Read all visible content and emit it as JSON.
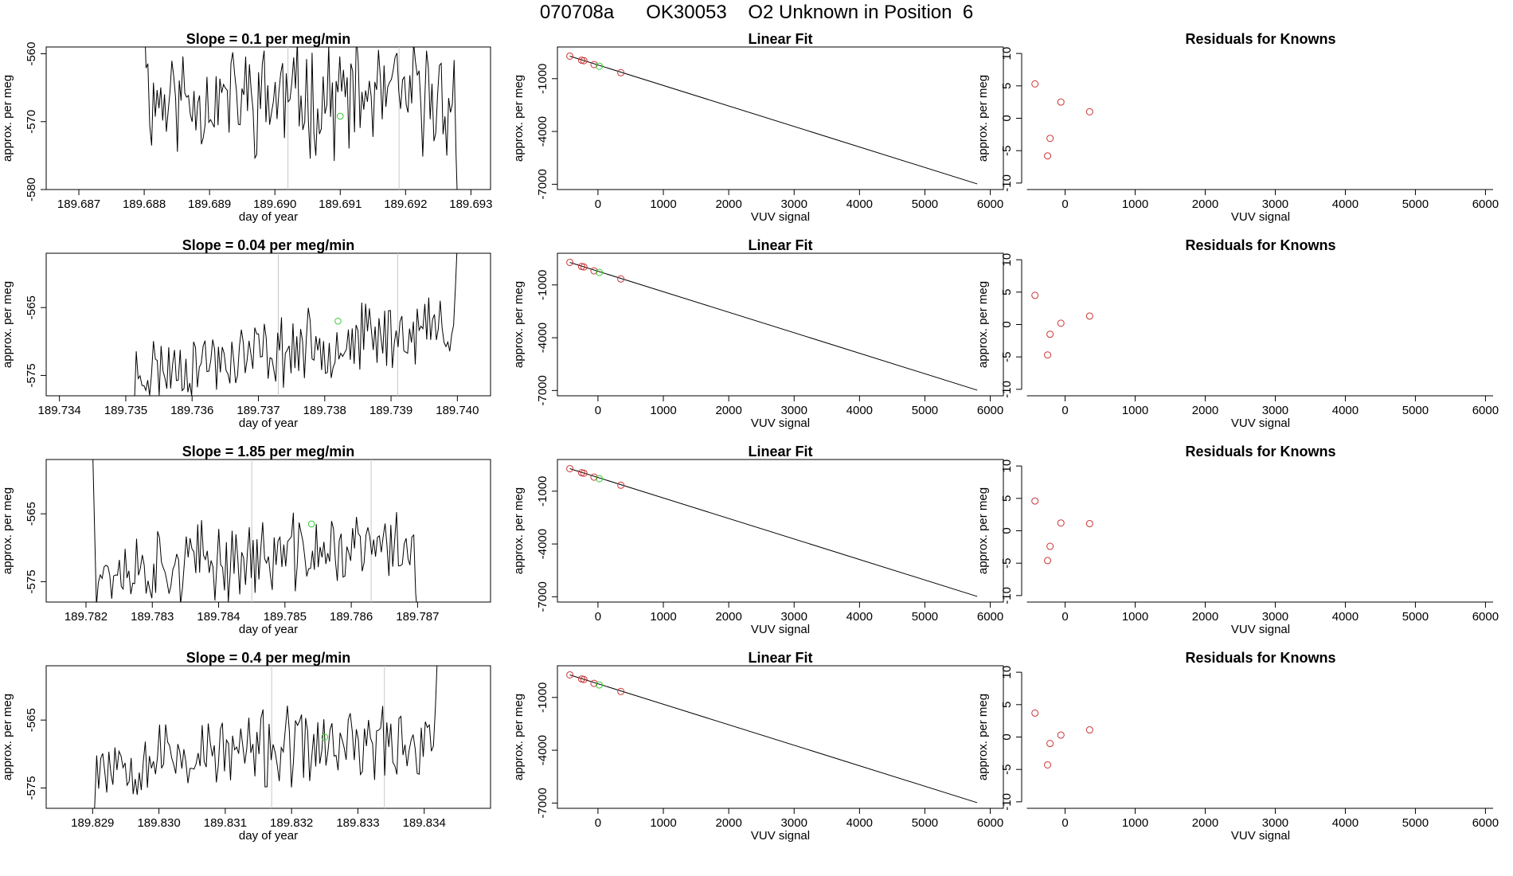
{
  "figure": {
    "title": "070708a      OK30053    O2 Unknown in Position  6"
  },
  "colors": {
    "axis": "#000000",
    "trace": "#000000",
    "fit_line": "#000000",
    "vline": "#c8c8c8",
    "red_point": "#cc3333",
    "green_point": "#33cc33"
  },
  "chart_data": [
    {
      "type": "line",
      "title": "Slope =  0.1  per meg/min",
      "xlabel": "day of year",
      "ylabel": "approx. per meg",
      "xlim": [
        189.6865,
        189.6933
      ],
      "ylim": [
        -580,
        -559
      ],
      "xticks": [
        189.687,
        189.688,
        189.689,
        189.69,
        189.691,
        189.692,
        189.693
      ],
      "xtick_labels": [
        "189.687",
        "189.688",
        "189.689",
        "189.690",
        "189.691",
        "189.692",
        "189.693"
      ],
      "yticks": [
        -560,
        -570,
        -580
      ],
      "ytick_labels": [
        "-560",
        "-570",
        "-580"
      ],
      "vlines": [
        189.6902,
        189.6919
      ],
      "highlight": {
        "x": 189.691,
        "y": -569.2
      },
      "series": {
        "start": 189.688,
        "end": 189.6928,
        "center": -566.5,
        "trend": 0.0,
        "amp": 6.5,
        "seed": 11,
        "lead_in": -553,
        "tail": -584
      }
    },
    {
      "type": "line",
      "title": "Slope =  0.04  per meg/min",
      "xlabel": "day of year",
      "ylabel": "approx. per meg",
      "xlim": [
        189.7338,
        189.7405
      ],
      "ylim": [
        -578,
        -557
      ],
      "xticks": [
        189.734,
        189.735,
        189.736,
        189.737,
        189.738,
        189.739,
        189.74
      ],
      "xtick_labels": [
        "189.734",
        "189.735",
        "189.736",
        "189.737",
        "189.738",
        "189.739",
        "189.740"
      ],
      "yticks": [
        -565,
        -575
      ],
      "ytick_labels": [
        "-565",
        "-575"
      ],
      "vlines": [
        189.7373,
        189.7391
      ],
      "highlight": {
        "x": 189.7382,
        "y": -567.0
      },
      "series": {
        "start": 189.7351,
        "end": 189.74,
        "center": -571.0,
        "trend": 7.0,
        "amp": 4.0,
        "seed": 23,
        "lead_in": -585,
        "tail": -555
      }
    },
    {
      "type": "line",
      "title": "Slope =  1.85  per meg/min",
      "xlabel": "day of year",
      "ylabel": "approx. per meg",
      "xlim": [
        189.7814,
        189.7881
      ],
      "ylim": [
        -578,
        -557
      ],
      "xticks": [
        189.782,
        189.783,
        189.784,
        189.785,
        189.786,
        189.787
      ],
      "xtick_labels": [
        "189.782",
        "189.783",
        "189.784",
        "189.785",
        "189.786",
        "189.787"
      ],
      "yticks": [
        -565,
        -575
      ],
      "ytick_labels": [
        "-565",
        "-575"
      ],
      "vlines": [
        189.7845,
        189.7863
      ],
      "highlight": {
        "x": 189.7854,
        "y": -566.5
      },
      "series": {
        "start": 189.7821,
        "end": 189.787,
        "center": -571.5,
        "trend": 4.0,
        "amp": 4.5,
        "seed": 37,
        "lead_in": -555,
        "tail": -580
      }
    },
    {
      "type": "line",
      "title": "Slope =  0.4  per meg/min",
      "xlabel": "day of year",
      "ylabel": "approx. per meg",
      "xlim": [
        189.8283,
        189.835
      ],
      "ylim": [
        -578,
        -557
      ],
      "xticks": [
        189.829,
        189.83,
        189.831,
        189.832,
        189.833,
        189.834
      ],
      "xtick_labels": [
        "189.829",
        "189.830",
        "189.831",
        "189.832",
        "189.833",
        "189.834"
      ],
      "yticks": [
        -565,
        -575
      ],
      "ytick_labels": [
        "-565",
        "-575"
      ],
      "vlines": [
        189.8317,
        189.8334
      ],
      "highlight": {
        "x": 189.8325,
        "y": -567.5
      },
      "series": {
        "start": 189.829,
        "end": 189.8342,
        "center": -569.5,
        "trend": 3.0,
        "amp": 4.5,
        "seed": 53,
        "lead_in": -582,
        "tail": -555
      }
    },
    {
      "type": "scatter",
      "title": "Linear Fit",
      "xlabel": "VUV signal",
      "ylabel": "approx. per meg",
      "xlim": [
        -620,
        6200
      ],
      "ylim": [
        -7300,
        800
      ],
      "xticks": [
        0,
        1000,
        2000,
        3000,
        4000,
        5000,
        6000
      ],
      "xtick_labels": [
        "0",
        "1000",
        "2000",
        "3000",
        "4000",
        "5000",
        "6000"
      ],
      "yticks": [
        -1000,
        -4000,
        -7000
      ],
      "ytick_labels": [
        "-1000",
        "-4000",
        "-7000"
      ],
      "fit_line": {
        "x": [
          -430,
          5800
        ],
        "y": [
          280,
          -6980
        ]
      },
      "points_red": [
        [
          -430,
          280
        ],
        [
          -250,
          50
        ],
        [
          -215,
          20
        ],
        [
          -60,
          -200
        ],
        [
          350,
          -660
        ]
      ],
      "points_green": [
        [
          20,
          -290
        ]
      ]
    },
    {
      "type": "scatter",
      "title": "Linear Fit",
      "xlabel": "VUV signal",
      "ylabel": "approx. per meg",
      "xlim": [
        -620,
        6200
      ],
      "ylim": [
        -7300,
        800
      ],
      "xticks": [
        0,
        1000,
        2000,
        3000,
        4000,
        5000,
        6000
      ],
      "xtick_labels": [
        "0",
        "1000",
        "2000",
        "3000",
        "4000",
        "5000",
        "6000"
      ],
      "yticks": [
        -1000,
        -4000,
        -7000
      ],
      "ytick_labels": [
        "-1000",
        "-4000",
        "-7000"
      ],
      "fit_line": {
        "x": [
          -430,
          5800
        ],
        "y": [
          280,
          -6980
        ]
      },
      "points_red": [
        [
          -430,
          280
        ],
        [
          -250,
          50
        ],
        [
          -215,
          20
        ],
        [
          -60,
          -200
        ],
        [
          350,
          -660
        ]
      ],
      "points_green": [
        [
          20,
          -290
        ]
      ]
    },
    {
      "type": "scatter",
      "title": "Linear Fit",
      "xlabel": "VUV signal",
      "ylabel": "approx. per meg",
      "xlim": [
        -620,
        6200
      ],
      "ylim": [
        -7300,
        800
      ],
      "xticks": [
        0,
        1000,
        2000,
        3000,
        4000,
        5000,
        6000
      ],
      "xtick_labels": [
        "0",
        "1000",
        "2000",
        "3000",
        "4000",
        "5000",
        "6000"
      ],
      "yticks": [
        -1000,
        -4000,
        -7000
      ],
      "ytick_labels": [
        "-1000",
        "-4000",
        "-7000"
      ],
      "fit_line": {
        "x": [
          -430,
          5800
        ],
        "y": [
          280,
          -6980
        ]
      },
      "points_red": [
        [
          -430,
          280
        ],
        [
          -250,
          50
        ],
        [
          -215,
          20
        ],
        [
          -60,
          -200
        ],
        [
          350,
          -660
        ]
      ],
      "points_green": [
        [
          20,
          -290
        ]
      ]
    },
    {
      "type": "scatter",
      "title": "Linear Fit",
      "xlabel": "VUV signal",
      "ylabel": "approx. per meg",
      "xlim": [
        -620,
        6200
      ],
      "ylim": [
        -7300,
        800
      ],
      "xticks": [
        0,
        1000,
        2000,
        3000,
        4000,
        5000,
        6000
      ],
      "xtick_labels": [
        "0",
        "1000",
        "2000",
        "3000",
        "4000",
        "5000",
        "6000"
      ],
      "yticks": [
        -1000,
        -4000,
        -7000
      ],
      "ytick_labels": [
        "-1000",
        "-4000",
        "-7000"
      ],
      "fit_line": {
        "x": [
          -430,
          5800
        ],
        "y": [
          280,
          -6980
        ]
      },
      "points_red": [
        [
          -430,
          280
        ],
        [
          -250,
          50
        ],
        [
          -215,
          20
        ],
        [
          -60,
          -200
        ],
        [
          350,
          -660
        ]
      ],
      "points_green": [
        [
          20,
          -290
        ]
      ]
    },
    {
      "type": "scatter",
      "title": "Residuals for Knowns",
      "xlabel": "VUV signal",
      "ylabel": "approx. per meg",
      "xlim": [
        -620,
        6200
      ],
      "ylim": [
        -11,
        11
      ],
      "xticks": [
        0,
        1000,
        2000,
        3000,
        4000,
        5000,
        6000
      ],
      "xtick_labels": [
        "0",
        "1000",
        "2000",
        "3000",
        "4000",
        "5000",
        "6000"
      ],
      "yticks": [
        10,
        5,
        0,
        -5,
        -10
      ],
      "ytick_labels": [
        "10",
        "5",
        "0",
        "-5",
        "-10"
      ],
      "points_red": [
        [
          -430,
          5.3
        ],
        [
          -60,
          2.5
        ],
        [
          -215,
          -3.1
        ],
        [
          -250,
          -5.8
        ],
        [
          350,
          1.0
        ]
      ]
    },
    {
      "type": "scatter",
      "title": "Residuals for Knowns",
      "xlabel": "VUV signal",
      "ylabel": "approx. per meg",
      "xlim": [
        -620,
        6200
      ],
      "ylim": [
        -11,
        11
      ],
      "xticks": [
        0,
        1000,
        2000,
        3000,
        4000,
        5000,
        6000
      ],
      "xtick_labels": [
        "0",
        "1000",
        "2000",
        "3000",
        "4000",
        "5000",
        "6000"
      ],
      "yticks": [
        10,
        5,
        0,
        -5,
        -10
      ],
      "ytick_labels": [
        "10",
        "5",
        "0",
        "-5",
        "-10"
      ],
      "points_red": [
        [
          -430,
          4.5
        ],
        [
          -60,
          0.2
        ],
        [
          -215,
          -1.5
        ],
        [
          -250,
          -4.7
        ],
        [
          350,
          1.3
        ]
      ]
    },
    {
      "type": "scatter",
      "title": "Residuals for Knowns",
      "xlabel": "VUV signal",
      "ylabel": "approx. per meg",
      "xlim": [
        -620,
        6200
      ],
      "ylim": [
        -11,
        11
      ],
      "xticks": [
        0,
        1000,
        2000,
        3000,
        4000,
        5000,
        6000
      ],
      "xtick_labels": [
        "0",
        "1000",
        "2000",
        "3000",
        "4000",
        "5000",
        "6000"
      ],
      "yticks": [
        10,
        5,
        0,
        -5,
        -10
      ],
      "ytick_labels": [
        "10",
        "5",
        "0",
        "-5",
        "-10"
      ],
      "points_red": [
        [
          -430,
          4.6
        ],
        [
          -60,
          1.2
        ],
        [
          -215,
          -2.4
        ],
        [
          -250,
          -4.6
        ],
        [
          350,
          1.1
        ]
      ]
    },
    {
      "type": "scatter",
      "title": "Residuals for Knowns",
      "xlabel": "VUV signal",
      "ylabel": "approx. per meg",
      "xlim": [
        -620,
        6200
      ],
      "ylim": [
        -11,
        11
      ],
      "xticks": [
        0,
        1000,
        2000,
        3000,
        4000,
        5000,
        6000
      ],
      "xtick_labels": [
        "0",
        "1000",
        "2000",
        "3000",
        "4000",
        "5000",
        "6000"
      ],
      "yticks": [
        10,
        5,
        0,
        -5,
        -10
      ],
      "ytick_labels": [
        "10",
        "5",
        "0",
        "-5",
        "-10"
      ],
      "points_red": [
        [
          -430,
          3.7
        ],
        [
          -60,
          0.3
        ],
        [
          -215,
          -1.0
        ],
        [
          -250,
          -4.3
        ],
        [
          350,
          1.1
        ]
      ]
    }
  ]
}
